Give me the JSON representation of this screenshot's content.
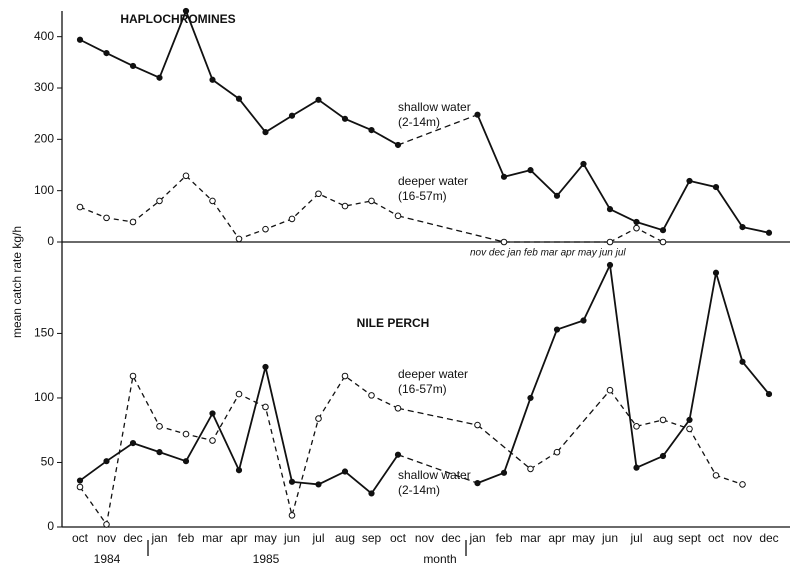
{
  "chart_data": [
    {
      "type": "line",
      "title": "HAPLOCHROMINES",
      "ylim": [
        0,
        450
      ],
      "yticks": [
        0,
        100,
        200,
        300,
        400
      ],
      "annotations": [
        "shallow water",
        "(2-14m)",
        "deeper water",
        "(16-57m)",
        "nov dec jan feb mar apr may jun jul"
      ],
      "series": [
        {
          "name": "shallow water",
          "color": "#111111",
          "line_style": "solid",
          "marker": "filled",
          "values": [
            394,
            368,
            343,
            320,
            450,
            316,
            279,
            214,
            246,
            277,
            240,
            218,
            189,
            null,
            null,
            248,
            127,
            140,
            90,
            152,
            64,
            39,
            23,
            119,
            107,
            29,
            18
          ]
        },
        {
          "name": "deeper water",
          "color": "#111111",
          "line_style": "dashed",
          "marker": "open",
          "values": [
            68,
            47,
            39,
            80,
            129,
            80,
            6,
            25,
            45,
            94,
            70,
            80,
            51,
            null,
            null,
            null,
            0,
            null,
            null,
            null,
            0,
            27,
            0,
            null,
            null,
            null,
            null
          ]
        }
      ]
    },
    {
      "type": "line",
      "title": "NILE PERCH",
      "y_label": "mean catch rate kg/h",
      "x_label": "month",
      "ylim": [
        0,
        210
      ],
      "yticks": [
        0,
        50,
        100,
        150
      ],
      "categories": [
        "oct",
        "nov",
        "dec",
        "jan",
        "feb",
        "mar",
        "apr",
        "may",
        "jun",
        "jul",
        "aug",
        "sep",
        "oct",
        "nov",
        "dec",
        "jan",
        "feb",
        "mar",
        "apr",
        "may",
        "jun",
        "jul",
        "aug",
        "sept",
        "oct",
        "nov",
        "dec"
      ],
      "years": [
        "1984",
        "1985"
      ],
      "annotations": [
        "deeper water",
        "(16-57m)",
        "shallow water",
        "(2-14m)"
      ],
      "series": [
        {
          "name": "shallow water",
          "color": "#111111",
          "line_style": "solid",
          "marker": "filled",
          "values": [
            36,
            51,
            65,
            58,
            51,
            88,
            44,
            124,
            35,
            33,
            43,
            26,
            56,
            null,
            null,
            34,
            42,
            100,
            153,
            160,
            203,
            46,
            55,
            83,
            197,
            128,
            103
          ]
        },
        {
          "name": "deeper water",
          "color": "#111111",
          "line_style": "dashed",
          "marker": "open",
          "values": [
            31,
            2,
            117,
            78,
            72,
            67,
            103,
            93,
            9,
            84,
            117,
            102,
            92,
            null,
            null,
            79,
            null,
            45,
            58,
            null,
            106,
            78,
            83,
            76,
            40,
            33,
            null
          ]
        }
      ]
    }
  ]
}
